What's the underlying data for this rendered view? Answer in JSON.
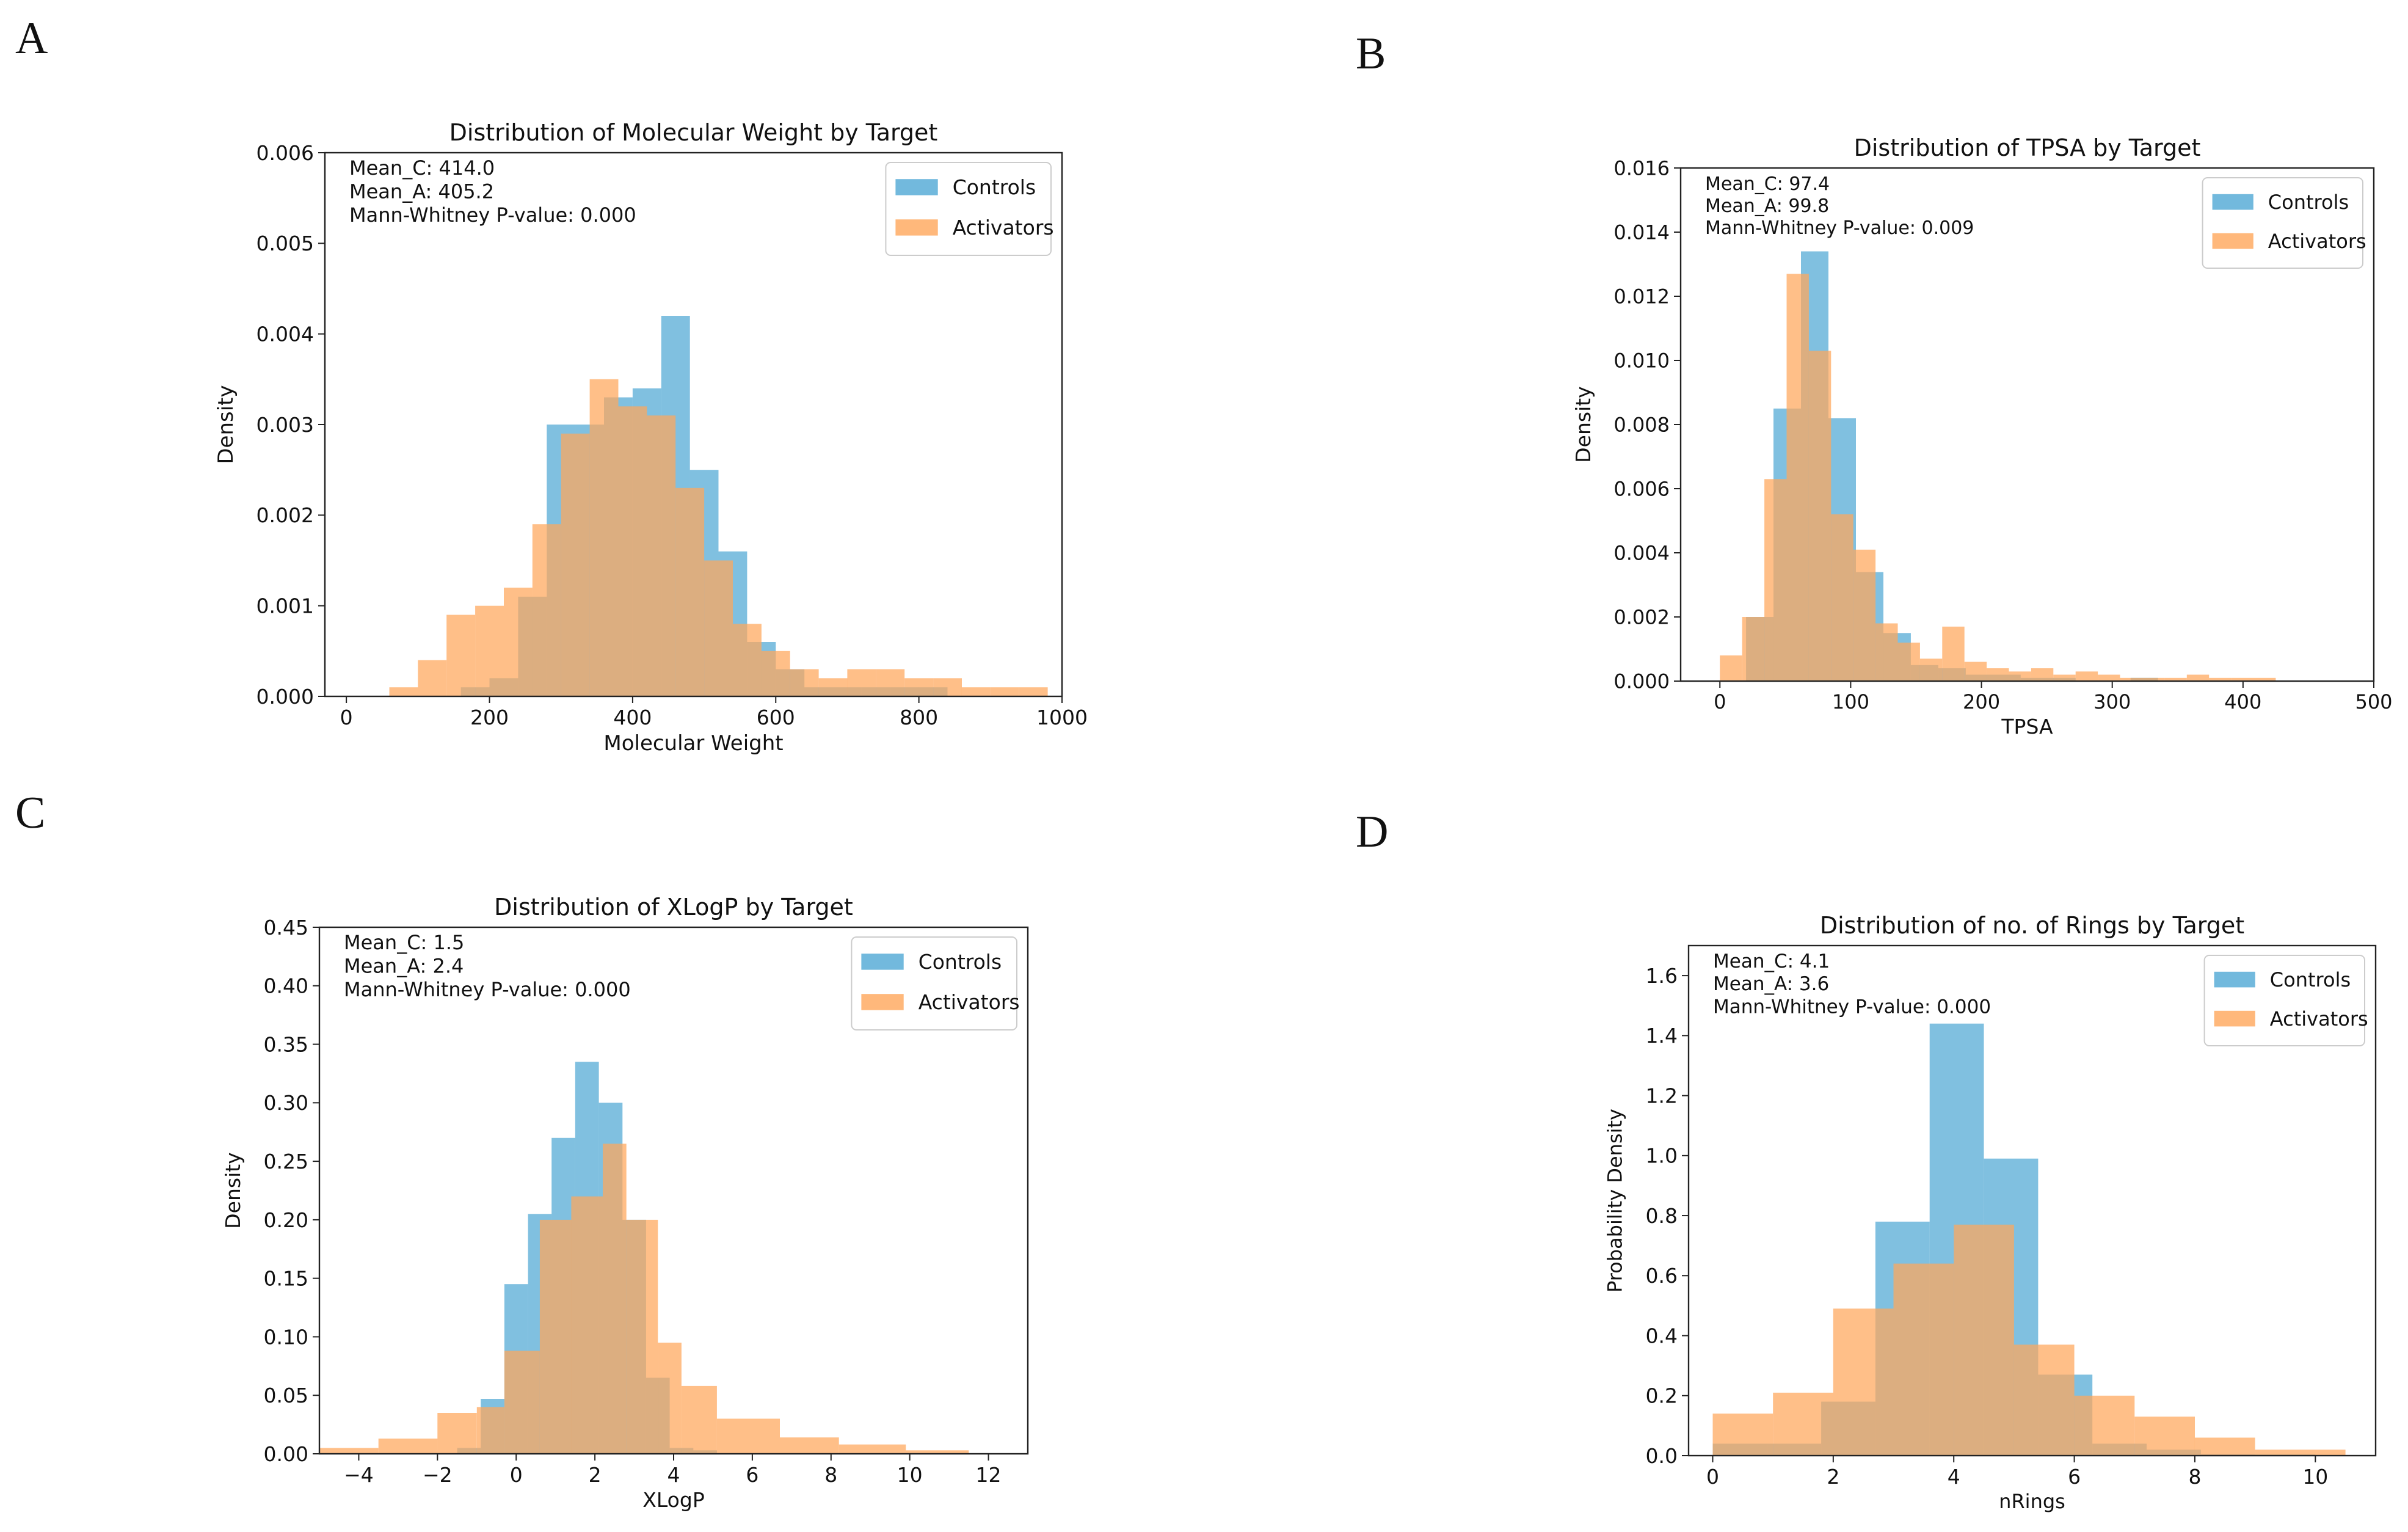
{
  "colors": {
    "controls": "#4fa8d4",
    "activators": "#ffa65a"
  },
  "chart_data": [
    {
      "panel": "A",
      "type": "bar",
      "title": "Distribution of Molecular Weight by Target",
      "xlabel": "Molecular Weight",
      "ylabel": "Density",
      "xlim": [
        -30,
        1000
      ],
      "ylim": [
        0,
        0.006
      ],
      "xticks": [
        0,
        200,
        400,
        600,
        800,
        1000
      ],
      "yticks": [
        0,
        0.001,
        0.002,
        0.003,
        0.004,
        0.005,
        0.006
      ],
      "ytick_decimals": 3,
      "annotations": [
        "Mean_C: 414.0",
        "Mean_A: 405.2",
        "Mann-Whitney P-value: 0.000"
      ],
      "legend": {
        "position": "upper-right",
        "entries": [
          "Controls",
          "Activators"
        ]
      },
      "series": [
        {
          "name": "Controls",
          "bin_edges": [
            0,
            40,
            80,
            120,
            160,
            200,
            240,
            280,
            320,
            360,
            400,
            440,
            480,
            520,
            560,
            600,
            640,
            680,
            720,
            760,
            800,
            840,
            880,
            920,
            960
          ],
          "values": [
            0,
            0,
            0,
            0,
            0.0001,
            0.0002,
            0.0011,
            0.003,
            0.003,
            0.0033,
            0.0034,
            0.0042,
            0.0025,
            0.0016,
            0.0006,
            0.0003,
            0.0001,
            0.0001,
            0.0001,
            0.0001,
            0.0001,
            0,
            0,
            0
          ]
        },
        {
          "name": "Activators",
          "bin_edges": [
            60,
            100,
            140,
            180,
            220,
            260,
            300,
            340,
            380,
            420,
            460,
            500,
            540,
            580,
            620,
            660,
            700,
            740,
            780,
            820,
            860,
            900,
            940,
            980
          ],
          "values": [
            0.0001,
            0.0004,
            0.0009,
            0.001,
            0.0012,
            0.0019,
            0.0029,
            0.0035,
            0.0032,
            0.0031,
            0.0023,
            0.0015,
            0.0008,
            0.0005,
            0.0003,
            0.0002,
            0.0003,
            0.0003,
            0.0002,
            0.0002,
            0.0001,
            0.0001,
            0.0001
          ]
        }
      ]
    },
    {
      "panel": "B",
      "type": "bar",
      "title": "Distribution of TPSA by Target",
      "xlabel": "TPSA",
      "ylabel": "Density",
      "xlim": [
        -30,
        500
      ],
      "ylim": [
        0,
        0.016
      ],
      "xticks": [
        0,
        100,
        200,
        300,
        400,
        500
      ],
      "yticks": [
        0,
        0.002,
        0.004,
        0.006,
        0.008,
        0.01,
        0.012,
        0.014,
        0.016
      ],
      "ytick_decimals": 3,
      "annotations": [
        "Mean_C: 97.4",
        "Mean_A: 99.8",
        "Mann-Whitney P-value: 0.009"
      ],
      "legend": {
        "position": "upper-right",
        "entries": [
          "Controls",
          "Activators"
        ]
      },
      "series": [
        {
          "name": "Controls",
          "bin_edges": [
            20,
            41,
            62,
            83,
            104,
            125,
            146,
            167,
            188,
            209,
            230,
            251,
            272,
            293,
            314,
            335,
            356,
            377,
            398,
            419,
            440,
            461
          ],
          "values": [
            0.002,
            0.0085,
            0.0134,
            0.0082,
            0.0034,
            0.0015,
            0.0005,
            0.0004,
            0.0002,
            0.0002,
            0.0001,
            0.0001,
            0,
            0,
            0.0001,
            0,
            0,
            0,
            0,
            0,
            0
          ]
        },
        {
          "name": "Activators",
          "bin_edges": [
            0,
            17,
            34,
            51,
            68,
            85,
            102,
            119,
            136,
            153,
            170,
            187,
            204,
            221,
            238,
            255,
            272,
            289,
            306,
            323,
            340,
            357,
            374,
            391,
            408,
            425
          ],
          "values": [
            0.0008,
            0.002,
            0.0063,
            0.0127,
            0.0103,
            0.0052,
            0.0041,
            0.0018,
            0.0012,
            0.0007,
            0.0017,
            0.0006,
            0.0004,
            0.0003,
            0.0004,
            0.0002,
            0.0003,
            0.0002,
            0.0001,
            0.0001,
            0.0001,
            0.0002,
            0.0001,
            0.0001,
            0.0001
          ]
        }
      ]
    },
    {
      "panel": "C",
      "type": "bar",
      "title": "Distribution of XLogP by Target",
      "xlabel": "XLogP",
      "ylabel": "Density",
      "xlim": [
        -5,
        13
      ],
      "ylim": [
        0,
        0.45
      ],
      "xticks": [
        -4,
        -2,
        0,
        2,
        4,
        6,
        8,
        10,
        12
      ],
      "yticks": [
        0,
        0.05,
        0.1,
        0.15,
        0.2,
        0.25,
        0.3,
        0.35,
        0.4,
        0.45
      ],
      "ytick_decimals": 2,
      "annotations": [
        "Mean_C: 1.5",
        "Mean_A: 2.4",
        "Mann-Whitney P-value: 0.000"
      ],
      "legend": {
        "position": "upper-right",
        "entries": [
          "Controls",
          "Activators"
        ]
      },
      "series": [
        {
          "name": "Controls",
          "bin_edges": [
            -1.5,
            -0.9,
            -0.3,
            0.3,
            0.9,
            1.5,
            2.1,
            2.7,
            3.3,
            3.9,
            4.5,
            5.1
          ],
          "values": [
            0.005,
            0.047,
            0.145,
            0.205,
            0.27,
            0.335,
            0.3,
            0.2,
            0.065,
            0.005,
            0.003
          ]
        },
        {
          "name": "Activators",
          "bin_edges": [
            -5,
            -3.5,
            -2,
            -1,
            -0.3,
            0.6,
            1.4,
            2.2,
            2.8,
            3.6,
            4.2,
            5.1,
            6.7,
            8.2,
            9.9,
            11.5
          ],
          "values": [
            0.005,
            0.013,
            0.035,
            0.04,
            0.088,
            0.2,
            0.22,
            0.265,
            0.2,
            0.095,
            0.058,
            0.03,
            0.014,
            0.008,
            0.003
          ]
        }
      ]
    },
    {
      "panel": "D",
      "type": "bar",
      "title": "Distribution of no. of Rings by Target",
      "xlabel": "nRings",
      "ylabel": "Probability Density",
      "xlim": [
        -0.4,
        11
      ],
      "ylim": [
        0,
        1.7
      ],
      "xticks": [
        0,
        2,
        4,
        6,
        8,
        10
      ],
      "yticks": [
        0,
        0.2,
        0.4,
        0.6,
        0.8,
        1,
        1.2,
        1.4,
        1.6
      ],
      "ytick_decimals": 1,
      "annotations": [
        "Mean_C: 4.1",
        "Mean_A: 3.6",
        "Mann-Whitney P-value: 0.000"
      ],
      "legend": {
        "position": "upper-right",
        "entries": [
          "Controls",
          "Activators"
        ]
      },
      "series": [
        {
          "name": "Controls",
          "bin_edges": [
            0,
            0.9,
            1.8,
            2.7,
            3.6,
            4.5,
            5.4,
            6.3,
            7.2,
            8.1,
            9,
            10
          ],
          "values": [
            0.04,
            0.04,
            0.18,
            0.78,
            1.44,
            0.99,
            0.27,
            0.04,
            0.02,
            0.005,
            0.004
          ]
        },
        {
          "name": "Activators",
          "bin_edges": [
            0,
            1,
            2,
            3,
            4,
            5,
            6,
            7,
            8,
            9,
            10.5
          ],
          "values": [
            0.14,
            0.21,
            0.49,
            0.64,
            0.77,
            0.37,
            0.2,
            0.13,
            0.06,
            0.02
          ]
        }
      ]
    }
  ]
}
